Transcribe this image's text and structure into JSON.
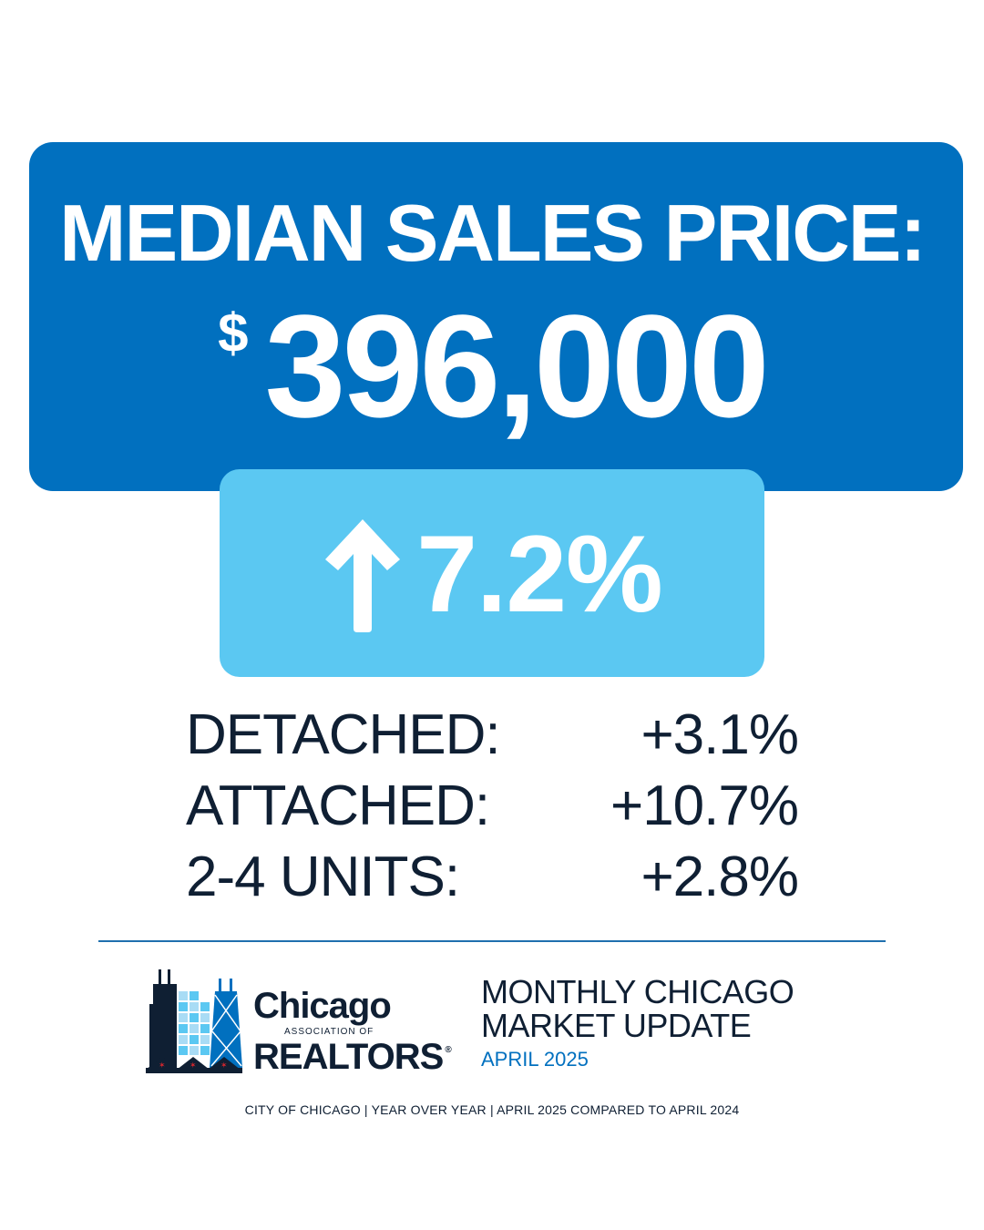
{
  "hero": {
    "title": "MEDIAN SALES PRICE:",
    "currency": "$",
    "price": "396,000"
  },
  "change": {
    "direction_icon": "up-arrow-icon",
    "value": "7.2%"
  },
  "breakdown": [
    {
      "label": "DETACHED:",
      "value": "+3.1%"
    },
    {
      "label": "ATTACHED:",
      "value": "+10.7%"
    },
    {
      "label": "2-4 UNITS:",
      "value": "+2.8%"
    }
  ],
  "logo": {
    "name_line1": "Chicago",
    "name_line2": "ASSOCIATION OF",
    "name_line3": "REALTORS",
    "registered_mark": "®"
  },
  "update": {
    "title_line1": "MONTHLY CHICAGO",
    "title_line2": "MARKET UPDATE",
    "month": "APRIL 2025"
  },
  "footnote": "CITY OF CHICAGO | YEAR OVER YEAR | APRIL 2025 COMPARED TO APRIL 2024",
  "colors": {
    "primary_blue": "#0170bf",
    "light_blue": "#5bc8f2",
    "dark_text": "#0f1f33",
    "accent_red": "#d7262e"
  }
}
